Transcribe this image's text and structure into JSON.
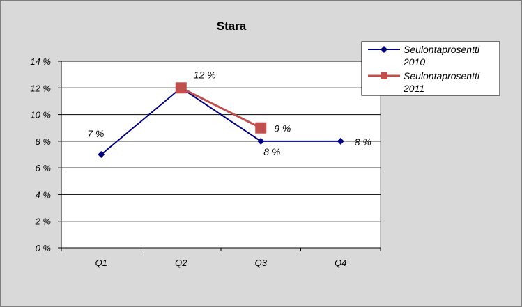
{
  "chart_data": {
    "type": "line",
    "title": "Stara",
    "xlabel": "",
    "ylabel": "",
    "categories": [
      "Q1",
      "Q2",
      "Q3",
      "Q4"
    ],
    "ylim": [
      0,
      14
    ],
    "yticks": [
      0,
      2,
      4,
      6,
      8,
      10,
      12,
      14
    ],
    "ytick_labels": [
      "0 %",
      "2 %",
      "4 %",
      "6 %",
      "8 %",
      "10 %",
      "12 %",
      "14 %"
    ],
    "grid": true,
    "legend_position": "top-right",
    "series": [
      {
        "name_line1": "Seulontaprosentti",
        "name_line2": "2010",
        "values": [
          7,
          12,
          8,
          8
        ],
        "labels": [
          "7 %",
          null,
          "8 %",
          "8 %"
        ],
        "color": "#000080",
        "marker": "diamond"
      },
      {
        "name_line1": "Seulontaprosentti",
        "name_line2": "2011",
        "values": [
          null,
          12,
          9,
          null
        ],
        "labels": [
          null,
          "12 %",
          "9 %",
          null
        ],
        "color": "#c0504d",
        "marker": "square"
      }
    ]
  }
}
